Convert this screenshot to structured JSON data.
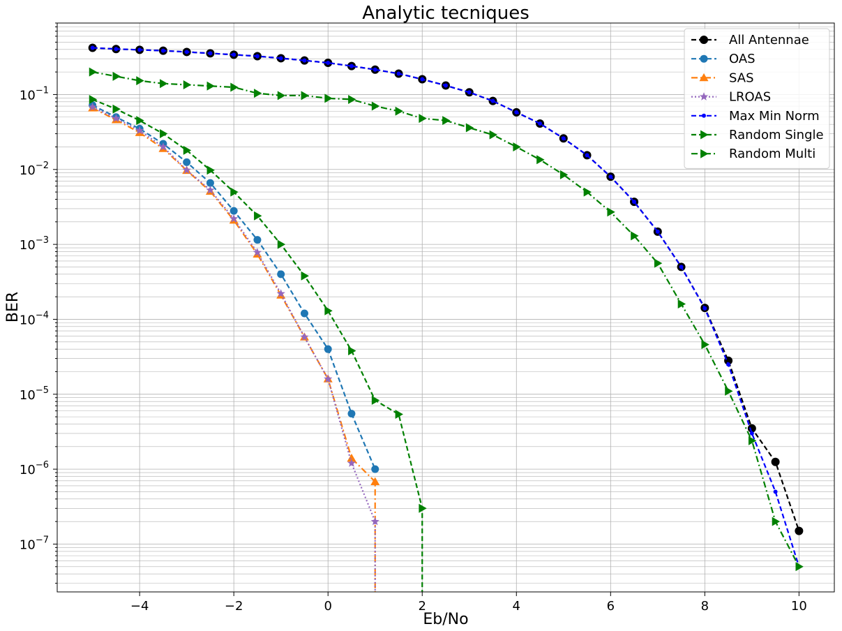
{
  "chart_data": {
    "type": "line",
    "title": "Analytic tecniques",
    "xlabel": "Eb/No",
    "ylabel": "BER",
    "xlim": [
      -5.75,
      10.75
    ],
    "ylim": [
      2.3e-08,
      0.9
    ],
    "yscale": "log",
    "grid": "on (major and minor)",
    "legend_position": "top-right",
    "x_ticks": [
      -4,
      -2,
      0,
      2,
      4,
      6,
      8,
      10
    ],
    "x_tick_labels": [
      "−4",
      "−2",
      "0",
      "2",
      "4",
      "6",
      "8",
      "10"
    ],
    "y_ticks": [
      1e-07,
      1e-06,
      1e-05,
      0.0001,
      0.001,
      0.01,
      0.1
    ],
    "y_tick_labels": [
      {
        "base": "10",
        "exp": "−7"
      },
      {
        "base": "10",
        "exp": "−6"
      },
      {
        "base": "10",
        "exp": "−5"
      },
      {
        "base": "10",
        "exp": "−4"
      },
      {
        "base": "10",
        "exp": "−3"
      },
      {
        "base": "10",
        "exp": "−2"
      },
      {
        "base": "10",
        "exp": "−1"
      }
    ],
    "series": [
      {
        "name": "All Antennae",
        "color": "#000000",
        "dash": "dashed",
        "marker": "circle",
        "x": [
          -5,
          -4.5,
          -4,
          -3.5,
          -3,
          -2.5,
          -2,
          -1.5,
          -1,
          -0.5,
          0,
          0.5,
          1,
          1.5,
          2,
          2.5,
          3,
          3.5,
          4,
          4.5,
          5,
          5.5,
          6,
          6.5,
          7,
          7.5,
          8,
          8.5,
          9,
          9.5,
          10
        ],
        "y": [
          0.42,
          0.405,
          0.395,
          0.385,
          0.37,
          0.355,
          0.34,
          0.325,
          0.305,
          0.285,
          0.265,
          0.24,
          0.215,
          0.19,
          0.16,
          0.132,
          0.107,
          0.082,
          0.058,
          0.041,
          0.026,
          0.0155,
          0.008,
          0.0037,
          0.00148,
          0.0005,
          0.000142,
          2.8e-05,
          3.5e-06,
          1.25e-06,
          1.5e-07
        ]
      },
      {
        "name": "OAS",
        "color": "#1f77b4",
        "dash": "dashed",
        "marker": "circle",
        "x": [
          -5,
          -4.5,
          -4,
          -3.5,
          -3,
          -2.5,
          -2,
          -1.5,
          -1,
          -0.5,
          0,
          0.5,
          1
        ],
        "y": [
          0.072,
          0.05,
          0.035,
          0.022,
          0.0125,
          0.0066,
          0.0028,
          0.00115,
          0.0004,
          0.00012,
          4e-05,
          5.5e-06,
          1e-06
        ]
      },
      {
        "name": "SAS",
        "color": "#ff7f0e",
        "dash": "dashdot",
        "marker": "triangle-up",
        "x": [
          -5,
          -4.5,
          -4,
          -3.5,
          -3,
          -2.5,
          -2,
          -1.5,
          -1,
          -0.5,
          0,
          0.5,
          1,
          1
        ],
        "y": [
          0.066,
          0.046,
          0.031,
          0.019,
          0.0097,
          0.0051,
          0.0021,
          0.00074,
          0.00021,
          5.8e-05,
          1.6e-05,
          1.4e-06,
          6.8e-07,
          2.3e-08
        ]
      },
      {
        "name": "LROAS",
        "color": "#9467bd",
        "dash": "dotted",
        "marker": "star",
        "x": [
          -5,
          -4.5,
          -4,
          -3.5,
          -3,
          -2.5,
          -2,
          -1.5,
          -1,
          -0.5,
          0,
          0.5,
          1,
          1
        ],
        "y": [
          0.068,
          0.048,
          0.033,
          0.02,
          0.0098,
          0.0053,
          0.0022,
          0.00078,
          0.00022,
          5.8e-05,
          1.6e-05,
          1.2e-06,
          2e-07,
          2.3e-08
        ]
      },
      {
        "name": "Max Min Norm",
        "color": "#0000ff",
        "dash": "dashed",
        "marker": "point",
        "x": [
          -5,
          -4.5,
          -4,
          -3.5,
          -3,
          -2.5,
          -2,
          -1.5,
          -1,
          -0.5,
          0,
          0.5,
          1,
          1.5,
          2,
          2.5,
          3,
          3.5,
          4,
          4.5,
          5,
          5.5,
          6,
          6.5,
          7,
          7.5,
          8,
          8.5,
          9,
          9.5,
          10
        ],
        "y": [
          0.42,
          0.405,
          0.395,
          0.385,
          0.37,
          0.355,
          0.34,
          0.325,
          0.305,
          0.285,
          0.265,
          0.24,
          0.215,
          0.19,
          0.16,
          0.132,
          0.107,
          0.082,
          0.058,
          0.041,
          0.026,
          0.0155,
          0.008,
          0.0037,
          0.00148,
          0.0005,
          0.00014,
          2.5e-05,
          3e-06,
          5e-07,
          5e-08
        ]
      },
      {
        "name": "Random Single",
        "color": "#008000",
        "dash": "dashed",
        "marker": "triangle-right",
        "x": [
          -5,
          -4.5,
          -4,
          -3.5,
          -3,
          -2.5,
          -2,
          -1.5,
          -1,
          -0.5,
          0,
          0.5,
          1,
          1.5,
          2,
          2
        ],
        "y": [
          0.086,
          0.064,
          0.045,
          0.03,
          0.018,
          0.0098,
          0.005,
          0.0024,
          0.001,
          0.00038,
          0.00013,
          3.8e-05,
          8.3e-06,
          5.4e-06,
          3e-07,
          2.3e-08
        ]
      },
      {
        "name": "Random Multi",
        "color": "#008000",
        "dash": "dashdot",
        "marker": "triangle-right",
        "x": [
          -5,
          -4.5,
          -4,
          -3.5,
          -3,
          -2.5,
          -2,
          -1.5,
          -1,
          -0.5,
          0,
          0.5,
          1,
          1.5,
          2,
          2.5,
          3,
          3.5,
          4,
          4.5,
          5,
          5.5,
          6,
          6.5,
          7,
          7.5,
          8,
          8.5,
          9,
          9.5,
          10
        ],
        "y": [
          0.2,
          0.175,
          0.153,
          0.14,
          0.135,
          0.13,
          0.125,
          0.104,
          0.097,
          0.097,
          0.089,
          0.086,
          0.07,
          0.06,
          0.048,
          0.045,
          0.036,
          0.029,
          0.02,
          0.0135,
          0.0085,
          0.005,
          0.0027,
          0.0013,
          0.00056,
          0.00016,
          4.6e-05,
          1.1e-05,
          2.4e-06,
          2e-07,
          5e-08
        ]
      }
    ]
  }
}
